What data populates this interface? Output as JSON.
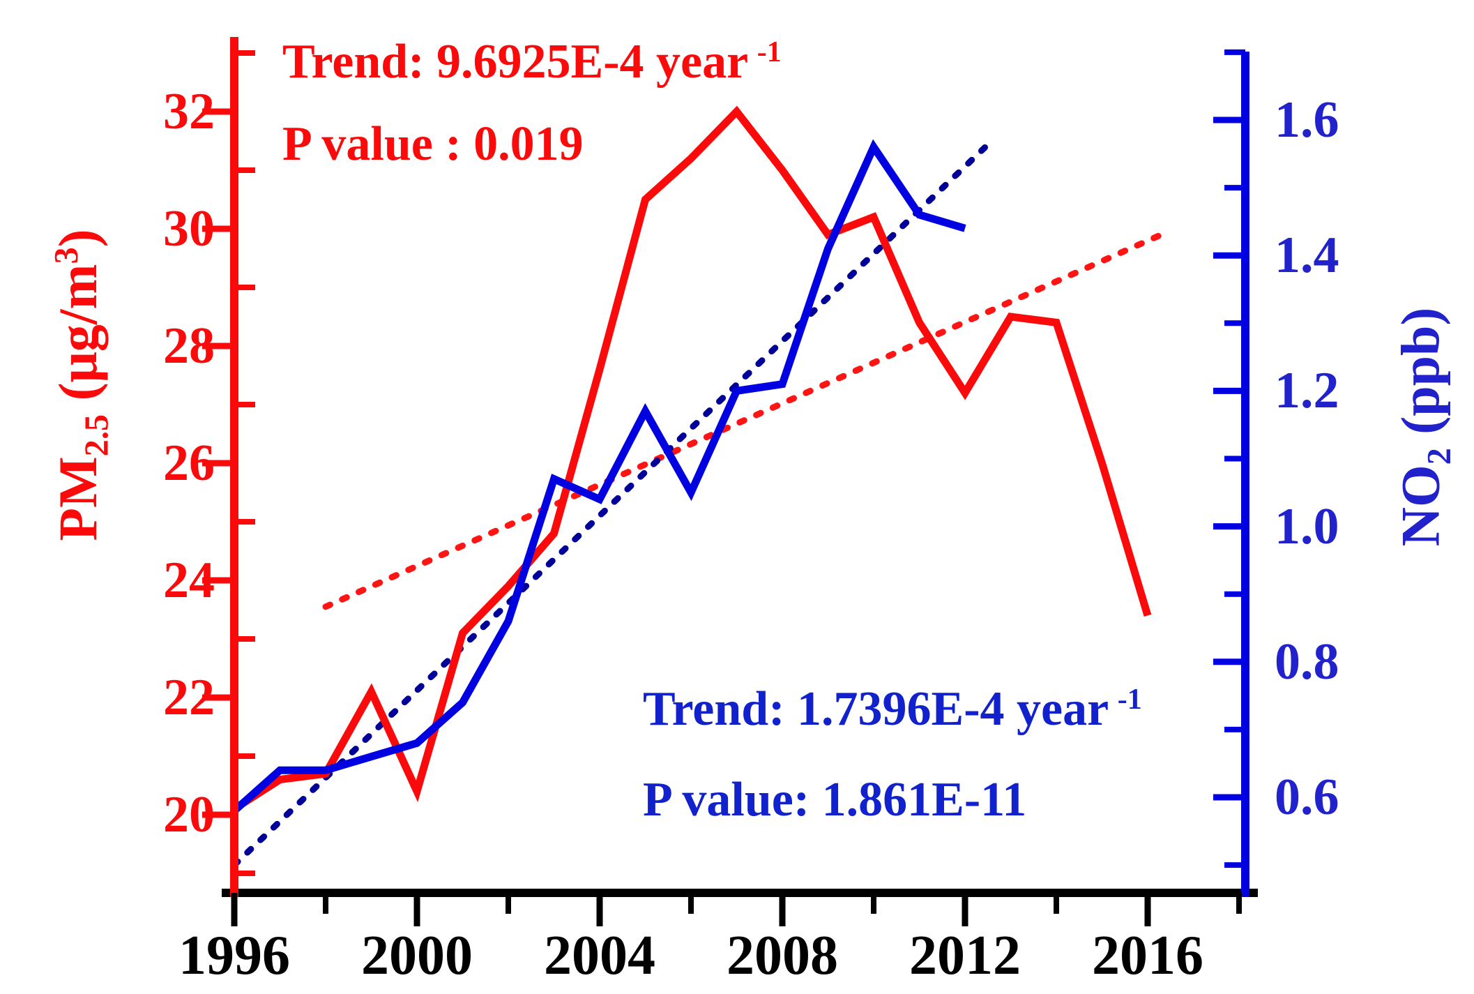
{
  "chart_data": {
    "type": "line",
    "title": "",
    "x_axis": {
      "tick_labels": [
        "1996",
        "2000",
        "2004",
        "2008",
        "2012",
        "2016"
      ],
      "tick_years": [
        1996,
        2000,
        2004,
        2008,
        2012,
        2016
      ],
      "minor_years": [
        1998,
        2002,
        2006,
        2010,
        2014,
        2018
      ],
      "range_years": [
        1995.7,
        2018.4
      ]
    },
    "left_axis": {
      "title_main": "PM",
      "title_sub": "2.5",
      "title_mid": " (μg/m",
      "title_sup": "3",
      "title_end": ")",
      "color": "#fa0a0a",
      "label_color": "#fa0a0a",
      "tick_values": [
        20,
        22,
        24,
        26,
        28,
        30,
        32
      ],
      "minor_values": [
        19,
        21,
        23,
        25,
        27,
        29,
        31,
        33
      ],
      "range": [
        18.6,
        33.3
      ]
    },
    "right_axis": {
      "title_main": "NO",
      "title_sub": "2",
      "title_end": " (ppb)",
      "color": "#0000e0",
      "label_color": "#2222cc",
      "tick_values": [
        0.6,
        0.8,
        1.0,
        1.2,
        1.4,
        1.6
      ],
      "minor_values": [
        0.5,
        0.7,
        0.9,
        1.1,
        1.3,
        1.5,
        1.7
      ],
      "range": [
        0.45,
        1.7
      ]
    },
    "series": [
      {
        "name": "PM2.5-trend",
        "axis": "left",
        "style": "dashed",
        "color": "#ff1414",
        "x": [
          1998,
          2016.3
        ],
        "values": [
          23.55,
          29.9
        ]
      },
      {
        "name": "NO2-trend",
        "axis": "right",
        "style": "dashed",
        "color": "#000099",
        "x": [
          1996,
          2012.6
        ],
        "values": [
          0.5,
          1.57
        ]
      },
      {
        "name": "PM2.5",
        "axis": "left",
        "style": "solid",
        "color": "#fa0a0a",
        "x": [
          1996,
          1997,
          1998,
          1999,
          2000,
          2001,
          2002,
          2003,
          2004,
          2005,
          2006,
          2007,
          2008,
          2009,
          2010,
          2011,
          2012,
          2013,
          2014,
          2015,
          2016
        ],
        "values": [
          20.1,
          20.6,
          20.7,
          22.1,
          20.4,
          23.1,
          23.9,
          24.8,
          27.6,
          30.5,
          31.2,
          32.0,
          31.0,
          29.9,
          30.2,
          28.4,
          27.2,
          28.5,
          28.4,
          26.0,
          23.4
        ]
      },
      {
        "name": "NO2",
        "axis": "right",
        "style": "solid",
        "color": "#0000e0",
        "x": [
          1996,
          1997,
          1998,
          1999,
          2000,
          2001,
          2002,
          2003,
          2004,
          2005,
          2006,
          2007,
          2008,
          2009,
          2010,
          2011,
          2012
        ],
        "values": [
          0.58,
          0.64,
          0.64,
          0.66,
          0.68,
          0.74,
          0.86,
          1.07,
          1.04,
          1.17,
          1.05,
          1.2,
          1.21,
          1.41,
          1.56,
          1.46,
          1.44
        ]
      }
    ],
    "annotations": {
      "red": {
        "trend_prefix": "Trend: 9.6925E-4 year",
        "trend_sup": "-1",
        "p_value": "P value : 0.019",
        "color": "#fa0a0a"
      },
      "blue": {
        "trend_prefix": "Trend: 1.7396E-4 year",
        "trend_sup": "-1",
        "p_value": "P value: 1.861E-11",
        "color": "#1122cc"
      }
    },
    "legend": "none",
    "grid": "off"
  }
}
